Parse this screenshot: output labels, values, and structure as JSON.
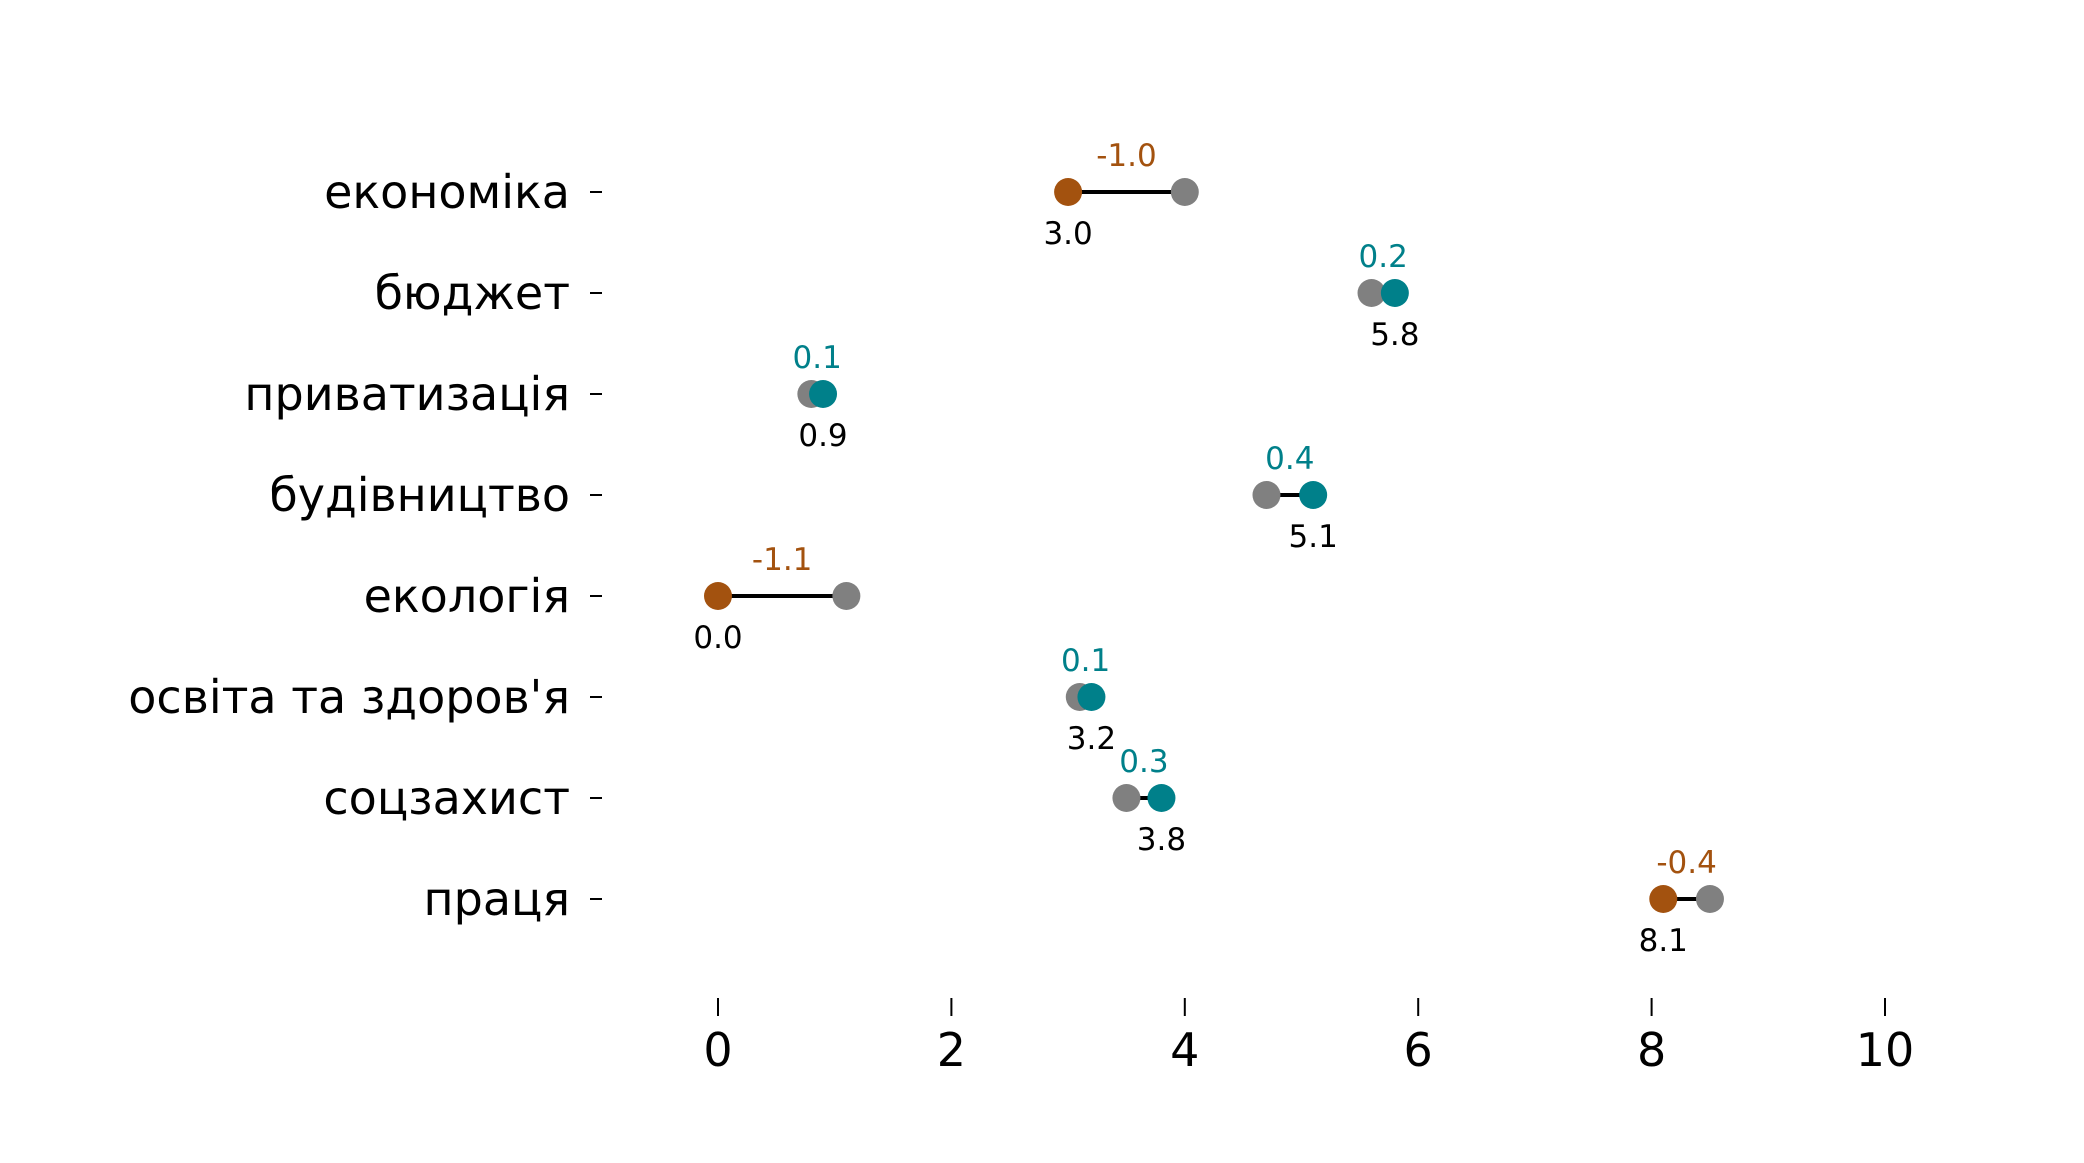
{
  "chart_data": {
    "type": "dumbbell",
    "categories": [
      "економіка",
      "бюджет",
      "приватизація",
      "будівництво",
      "екологія",
      "освіта та здоров'я",
      "соцзахист",
      "праця"
    ],
    "series": [
      {
        "values": [
          4.0,
          5.6,
          0.8,
          4.7,
          1.1,
          3.1,
          3.5,
          8.5
        ]
      },
      {
        "values": [
          3.0,
          5.8,
          0.9,
          5.1,
          0.0,
          3.2,
          3.8,
          8.1
        ]
      }
    ],
    "value_labels": [
      "3.0",
      "5.8",
      "0.9",
      "5.1",
      "0.0",
      "3.2",
      "3.8",
      "8.1"
    ],
    "delta_labels": [
      "-1.0",
      "0.2",
      "0.1",
      "0.4",
      "-1.1",
      "0.1",
      "0.3",
      "-0.4"
    ],
    "x_ticks": [
      "0",
      "2",
      "4",
      "6",
      "8",
      "10"
    ],
    "xlim": [
      0,
      10
    ],
    "colors": {
      "previous": "#808080",
      "increase": "#00808a",
      "decrease": "#a3520f",
      "connector": "#000000"
    }
  }
}
